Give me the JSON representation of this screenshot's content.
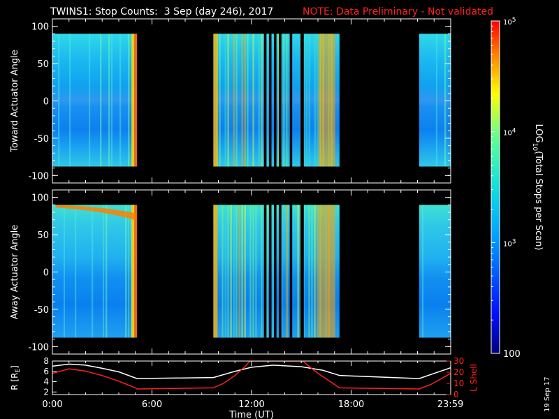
{
  "header": {
    "title": "TWINS1: Stop Counts:  3 Sep (day 246), 2017",
    "note": "NOTE: Data Preliminary - Not validated"
  },
  "footer": {
    "date_stamp": "19 Sep 17"
  },
  "colors": {
    "background": "#000000",
    "axes": "#ffffff",
    "note": "#ff2020",
    "r_line": "#ffffff",
    "lshell_line": "#ff2020"
  },
  "chart_data": [
    {
      "type": "heatmap",
      "panel": "toward",
      "ylabel": "Toward Actuator Angle",
      "ylim": [
        -110,
        110
      ],
      "yticks": [
        "100",
        "50",
        "0",
        "-50",
        "-100"
      ],
      "xlim": [
        0,
        24
      ],
      "data_ylim": [
        -88,
        90
      ],
      "data_segments": [
        [
          0,
          5.1
        ],
        [
          9.7,
          17.3
        ],
        [
          22.1,
          24
        ]
      ],
      "gaps": [
        [
          12.75,
          12.9
        ],
        [
          13.05,
          13.2
        ],
        [
          13.35,
          13.5
        ],
        [
          13.65,
          13.8
        ],
        [
          14.3,
          14.45
        ],
        [
          14.95,
          15.15
        ]
      ]
    },
    {
      "type": "heatmap",
      "panel": "away",
      "ylabel": "Away Actuator Angle",
      "ylim": [
        -110,
        110
      ],
      "yticks": [
        "100",
        "50",
        "0",
        "-50",
        "-100"
      ],
      "xlim": [
        0,
        24
      ],
      "data_ylim": [
        -88,
        90
      ],
      "data_segments": [
        [
          0,
          5.1
        ],
        [
          9.7,
          17.3
        ],
        [
          22.1,
          24
        ]
      ],
      "gaps": [
        [
          12.75,
          12.9
        ],
        [
          13.05,
          13.2
        ],
        [
          13.35,
          13.5
        ],
        [
          13.65,
          13.8
        ],
        [
          14.3,
          14.45
        ],
        [
          14.95,
          15.15
        ]
      ]
    },
    {
      "type": "line",
      "panel": "orbit",
      "ylabel_left": "R [R",
      "ylabel_left_sub": "E",
      "ylabel_left_end": "]",
      "ylabel_right": "L Shell",
      "xlabel": "Time (UT)",
      "xticks": [
        "0:00",
        "6:00",
        "12:00",
        "18:00",
        "23:59"
      ],
      "xtick_values": [
        0,
        6,
        12,
        18,
        23.98
      ],
      "yticks_left": [
        "8",
        "6",
        "4",
        "2"
      ],
      "yticks_right": [
        "30",
        "20",
        "10",
        "0"
      ],
      "ylim_left": [
        1.5,
        8
      ],
      "ylim_right": [
        0,
        30
      ],
      "series": [
        {
          "axis": "left",
          "color": "#ffffff",
          "x": [
            0,
            1,
            2,
            3,
            4,
            5.1,
            9.7,
            11,
            12,
            13.3,
            15,
            16.3,
            17.3,
            22.1,
            23,
            24
          ],
          "y": [
            7.0,
            7.4,
            7.2,
            6.6,
            5.9,
            4.6,
            4.8,
            6.0,
            6.8,
            7.2,
            6.9,
            6.2,
            5.2,
            4.6,
            5.6,
            6.7
          ]
        },
        {
          "axis": "right",
          "color": "#ff2020",
          "x": [
            0,
            1,
            2,
            3,
            4,
            5,
            5.1,
            9.7,
            10.3,
            11,
            11.6,
            11.9,
            15.1,
            15.4,
            16,
            16.7,
            17.3,
            22.1,
            22.8,
            23.4,
            24
          ],
          "y": [
            19,
            23,
            21,
            17,
            12,
            6,
            5,
            6,
            10,
            17,
            25,
            30,
            30,
            26,
            19,
            12,
            6,
            5,
            9,
            14,
            19
          ]
        }
      ]
    }
  ],
  "colorbar": {
    "label": "LOG10(Total Stops per Scan)",
    "label_main": "LOG",
    "label_sub": "10",
    "label_rest": "(Total Stops per Scan)",
    "ticks": [
      {
        "label": "10",
        "sup": "5",
        "value": 5
      },
      {
        "label": "10",
        "sup": "4",
        "value": 4
      },
      {
        "label": "10",
        "sup": "3",
        "value": 3
      },
      {
        "label": "100",
        "sup": "",
        "value": 2
      }
    ],
    "range": [
      2,
      5
    ]
  }
}
